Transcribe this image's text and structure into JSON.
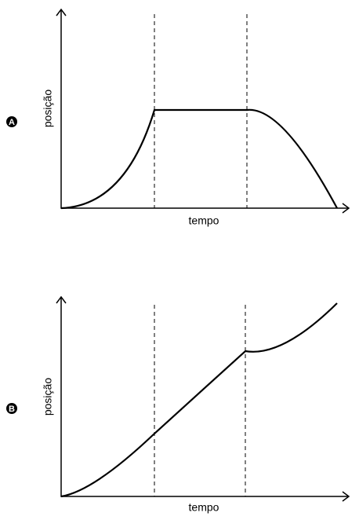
{
  "graphs": [
    {
      "label": "A",
      "y_label": "posição",
      "x_label": "tempo"
    },
    {
      "label": "B",
      "y_label": "posição",
      "x_label": "tempo"
    }
  ]
}
